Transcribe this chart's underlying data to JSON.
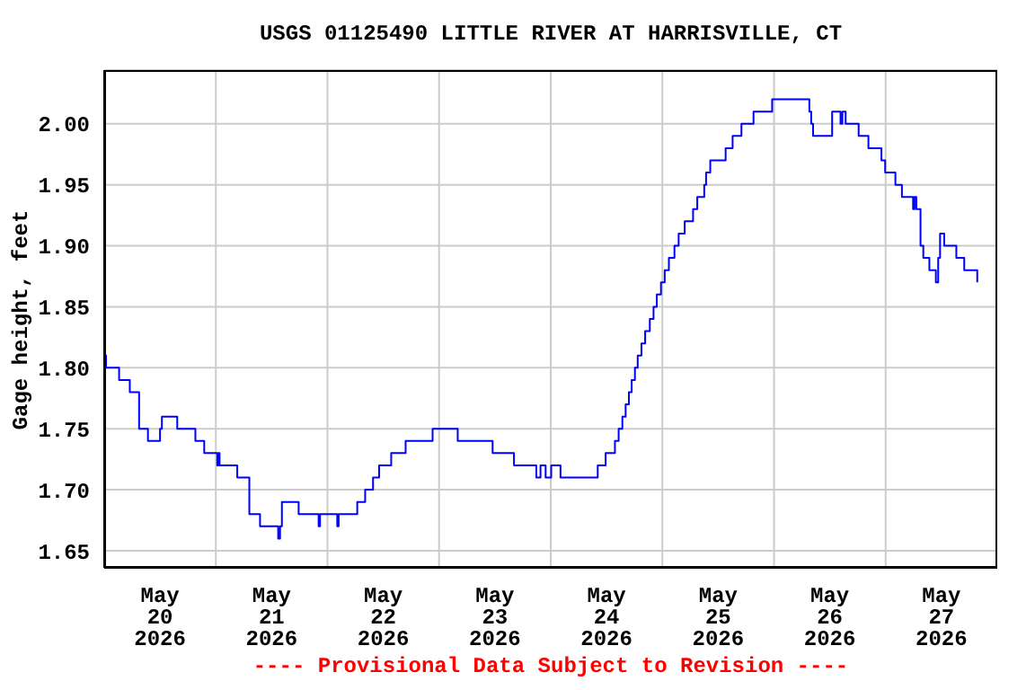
{
  "chart_data": {
    "type": "step",
    "title": "USGS 01125490 LITTLE RIVER AT HARRISVILLE, CT",
    "ylabel": "Gage height, feet",
    "annotations": [
      "---- Provisional Data Subject to Revision ----"
    ],
    "x": [
      "2026-05-20T00:00",
      "2026-05-20T00:24",
      "2026-05-20T03:12",
      "2026-05-20T05:30",
      "2026-05-20T07:30",
      "2026-05-20T09:24",
      "2026-05-20T12:00",
      "2026-05-20T12:24",
      "2026-05-20T15:42",
      "2026-05-20T19:36",
      "2026-05-20T21:30",
      "2026-05-21T00:18",
      "2026-05-21T00:30",
      "2026-05-21T00:48",
      "2026-05-21T04:36",
      "2026-05-21T07:12",
      "2026-05-21T09:30",
      "2026-05-21T13:24",
      "2026-05-21T13:48",
      "2026-05-21T14:12",
      "2026-05-21T17:48",
      "2026-05-21T22:06",
      "2026-05-21T22:24",
      "2026-05-22T02:06",
      "2026-05-22T02:24",
      "2026-05-22T06:24",
      "2026-05-22T08:06",
      "2026-05-22T09:48",
      "2026-05-22T11:06",
      "2026-05-22T13:42",
      "2026-05-22T16:48",
      "2026-05-22T22:36",
      "2026-05-23T04:00",
      "2026-05-23T11:30",
      "2026-05-23T16:06",
      "2026-05-23T20:54",
      "2026-05-23T21:48",
      "2026-05-23T22:54",
      "2026-05-24T00:06",
      "2026-05-24T02:06",
      "2026-05-24T10:06",
      "2026-05-24T11:48",
      "2026-05-24T13:48",
      "2026-05-24T14:36",
      "2026-05-24T15:24",
      "2026-05-24T16:06",
      "2026-05-24T16:48",
      "2026-05-24T17:24",
      "2026-05-24T18:06",
      "2026-05-24T18:42",
      "2026-05-24T19:30",
      "2026-05-24T20:18",
      "2026-05-24T21:18",
      "2026-05-24T22:06",
      "2026-05-24T22:48",
      "2026-05-24T23:42",
      "2026-05-25T00:30",
      "2026-05-25T01:24",
      "2026-05-25T02:36",
      "2026-05-25T03:30",
      "2026-05-25T04:48",
      "2026-05-25T06:36",
      "2026-05-25T07:30",
      "2026-05-25T09:00",
      "2026-05-25T09:24",
      "2026-05-25T10:18",
      "2026-05-25T13:36",
      "2026-05-25T15:06",
      "2026-05-25T17:00",
      "2026-05-25T19:36",
      "2026-05-25T23:36",
      "2026-05-26T07:36",
      "2026-05-26T08:00",
      "2026-05-26T08:24",
      "2026-05-26T12:30",
      "2026-05-26T14:18",
      "2026-05-26T14:42",
      "2026-05-26T15:24",
      "2026-05-26T18:12",
      "2026-05-26T20:18",
      "2026-05-26T23:06",
      "2026-05-26T23:54",
      "2026-05-27T02:06",
      "2026-05-27T03:30",
      "2026-05-27T05:54",
      "2026-05-27T06:12",
      "2026-05-27T06:36",
      "2026-05-27T07:30",
      "2026-05-27T08:06",
      "2026-05-27T09:24",
      "2026-05-27T10:48",
      "2026-05-27T11:18",
      "2026-05-27T11:42",
      "2026-05-27T12:36",
      "2026-05-27T15:12",
      "2026-05-27T16:54",
      "2026-05-27T19:42"
    ],
    "series": [
      {
        "color": "#0000ff",
        "values": [
          1.81,
          1.8,
          1.79,
          1.78,
          1.75,
          1.74,
          1.75,
          1.76,
          1.75,
          1.74,
          1.73,
          1.72,
          1.73,
          1.72,
          1.71,
          1.68,
          1.67,
          1.66,
          1.67,
          1.69,
          1.68,
          1.67,
          1.68,
          1.67,
          1.68,
          1.69,
          1.7,
          1.71,
          1.72,
          1.73,
          1.74,
          1.75,
          1.74,
          1.73,
          1.72,
          1.71,
          1.72,
          1.71,
          1.72,
          1.71,
          1.72,
          1.73,
          1.74,
          1.75,
          1.76,
          1.77,
          1.78,
          1.79,
          1.8,
          1.81,
          1.82,
          1.83,
          1.84,
          1.85,
          1.86,
          1.87,
          1.88,
          1.89,
          1.9,
          1.91,
          1.92,
          1.93,
          1.94,
          1.95,
          1.96,
          1.97,
          1.98,
          1.99,
          2.0,
          2.01,
          2.02,
          2.01,
          2.0,
          1.99,
          2.01,
          2.0,
          2.01,
          2.0,
          1.99,
          1.98,
          1.97,
          1.96,
          1.95,
          1.94,
          1.93,
          1.94,
          1.93,
          1.9,
          1.89,
          1.88,
          1.87,
          1.89,
          1.91,
          1.9,
          1.89,
          1.88,
          1.87
        ]
      }
    ],
    "xlim": [
      "2026-05-20T00:00",
      "2026-05-28T00:00"
    ],
    "xticks": [
      {
        "value": "2026-05-20T12:00",
        "label": "May\n20\n2026"
      },
      {
        "value": "2026-05-21T00:00",
        "label": null
      },
      {
        "value": "2026-05-21T12:00",
        "label": "May\n21\n2026"
      },
      {
        "value": "2026-05-22T00:00",
        "label": null
      },
      {
        "value": "2026-05-22T12:00",
        "label": "May\n22\n2026"
      },
      {
        "value": "2026-05-23T00:00",
        "label": null
      },
      {
        "value": "2026-05-23T12:00",
        "label": "May\n23\n2026"
      },
      {
        "value": "2026-05-24T00:00",
        "label": null
      },
      {
        "value": "2026-05-24T12:00",
        "label": "May\n24\n2026"
      },
      {
        "value": "2026-05-25T00:00",
        "label": null
      },
      {
        "value": "2026-05-25T12:00",
        "label": "May\n25\n2026"
      },
      {
        "value": "2026-05-26T00:00",
        "label": null
      },
      {
        "value": "2026-05-26T12:00",
        "label": "May\n26\n2026"
      },
      {
        "value": "2026-05-27T00:00",
        "label": null
      },
      {
        "value": "2026-05-27T12:00",
        "label": "May\n27\n2026"
      }
    ],
    "ylim": [
      1.636,
      2.044
    ],
    "yticks": [
      {
        "value": 1.65,
        "label": "1.65"
      },
      {
        "value": 1.7,
        "label": "1.70"
      },
      {
        "value": 1.75,
        "label": "1.75"
      },
      {
        "value": 1.8,
        "label": "1.80"
      },
      {
        "value": 1.85,
        "label": "1.85"
      },
      {
        "value": 1.9,
        "label": "1.90"
      },
      {
        "value": 1.95,
        "label": "1.95"
      },
      {
        "value": 2,
        "label": "2.00"
      }
    ],
    "grid": true
  }
}
